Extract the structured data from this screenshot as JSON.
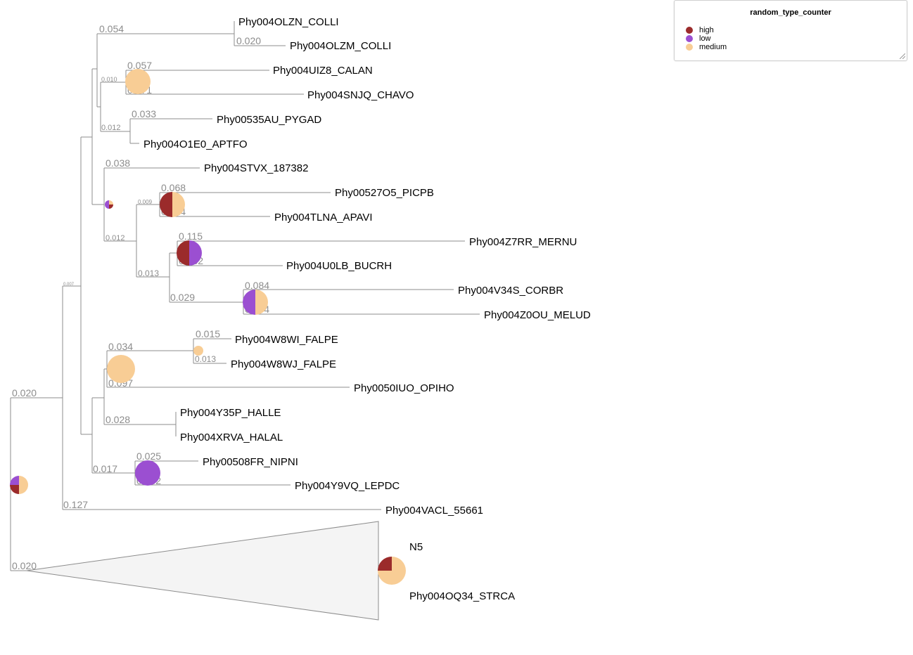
{
  "legend": {
    "title": "random_type_counter",
    "items": [
      {
        "label": "high",
        "color": "#9b2b2b"
      },
      {
        "label": "low",
        "color": "#9b4fd1"
      },
      {
        "label": "medium",
        "color": "#f8cd95"
      }
    ]
  },
  "leaves": [
    {
      "id": "l1",
      "label": "Phy004OLZN_COLLI"
    },
    {
      "id": "l2",
      "label": "Phy004OLZM_COLLI"
    },
    {
      "id": "l3",
      "label": "Phy004UIZ8_CALAN"
    },
    {
      "id": "l4",
      "label": "Phy004SNJQ_CHAVO"
    },
    {
      "id": "l5",
      "label": "Phy00535AU_PYGAD"
    },
    {
      "id": "l6",
      "label": "Phy004O1E0_APTFO"
    },
    {
      "id": "l7",
      "label": "Phy004STVX_187382"
    },
    {
      "id": "l8",
      "label": "Phy00527O5_PICPB"
    },
    {
      "id": "l9",
      "label": "Phy004TLNA_APAVI"
    },
    {
      "id": "l10",
      "label": "Phy004Z7RR_MERNU"
    },
    {
      "id": "l11",
      "label": "Phy004U0LB_BUCRH"
    },
    {
      "id": "l12",
      "label": "Phy004V34S_CORBR"
    },
    {
      "id": "l13",
      "label": "Phy004Z0OU_MELUD"
    },
    {
      "id": "l14",
      "label": "Phy004W8WI_FALPE"
    },
    {
      "id": "l15",
      "label": "Phy004W8WJ_FALPE"
    },
    {
      "id": "l16",
      "label": "Phy0050IUO_OPIHO"
    },
    {
      "id": "l17",
      "label": "Phy004Y35P_HALLE"
    },
    {
      "id": "l18",
      "label": "Phy004XRVA_HALAL"
    },
    {
      "id": "l19",
      "label": "Phy00508FR_NIPNI"
    },
    {
      "id": "l20",
      "label": "Phy004Y9VQ_LEPDC"
    },
    {
      "id": "l21",
      "label": "Phy004VACL_55661"
    }
  ],
  "collapsed_clade": {
    "name": "N5",
    "label": "Phy004OQ34_STRCA"
  },
  "branch_lengths": [
    {
      "id": "b1",
      "text": "0.054"
    },
    {
      "id": "b2",
      "text": "0.020"
    },
    {
      "id": "b3",
      "text": "0.057"
    },
    {
      "id": "b4",
      "text": "0.010"
    },
    {
      "id": "b5",
      "text": "0.071"
    },
    {
      "id": "b6",
      "text": "0.033"
    },
    {
      "id": "b7",
      "text": "0.012"
    },
    {
      "id": "b8",
      "text": "0.038"
    },
    {
      "id": "b9",
      "text": "0.068"
    },
    {
      "id": "b10",
      "text": "0.009"
    },
    {
      "id": "b11",
      "text": "0.024"
    },
    {
      "id": "b12",
      "text": "0.012"
    },
    {
      "id": "b13",
      "text": "0.115"
    },
    {
      "id": "b14",
      "text": "0.032"
    },
    {
      "id": "b15",
      "text": "0.013"
    },
    {
      "id": "b16",
      "text": "0.084"
    },
    {
      "id": "b17",
      "text": "0.029"
    },
    {
      "id": "b18",
      "text": "0.104"
    },
    {
      "id": "b19",
      "text": "0.007"
    },
    {
      "id": "b20",
      "text": "0.015"
    },
    {
      "id": "b21",
      "text": "0.034"
    },
    {
      "id": "b22",
      "text": "0.013"
    },
    {
      "id": "b23",
      "text": "0.097"
    },
    {
      "id": "b24",
      "text": "0.028"
    },
    {
      "id": "b25",
      "text": "0.025"
    },
    {
      "id": "b26",
      "text": "0.017"
    },
    {
      "id": "b27",
      "text": "0.032"
    },
    {
      "id": "b28",
      "text": "0.020"
    },
    {
      "id": "b29",
      "text": "0.127"
    },
    {
      "id": "b30",
      "text": "0.020"
    }
  ],
  "pie_nodes": [
    {
      "id": "p1",
      "composition": [
        {
          "type": "medium",
          "fraction": 1.0
        }
      ]
    },
    {
      "id": "p2",
      "composition": [
        {
          "type": "medium",
          "fraction": 0.25
        },
        {
          "type": "high",
          "fraction": 0.25
        },
        {
          "type": "low",
          "fraction": 0.5
        }
      ]
    },
    {
      "id": "p3",
      "composition": [
        {
          "type": "medium",
          "fraction": 0.5
        },
        {
          "type": "high",
          "fraction": 0.5
        }
      ]
    },
    {
      "id": "p4",
      "composition": [
        {
          "type": "low",
          "fraction": 0.5
        },
        {
          "type": "high",
          "fraction": 0.5
        }
      ]
    },
    {
      "id": "p5",
      "composition": [
        {
          "type": "medium",
          "fraction": 0.5
        },
        {
          "type": "low",
          "fraction": 0.5
        }
      ]
    },
    {
      "id": "p6",
      "composition": [
        {
          "type": "medium",
          "fraction": 1.0
        }
      ]
    },
    {
      "id": "p7",
      "composition": [
        {
          "type": "medium",
          "fraction": 1.0
        }
      ]
    },
    {
      "id": "p8",
      "composition": [
        {
          "type": "low",
          "fraction": 1.0
        }
      ]
    },
    {
      "id": "p9",
      "composition": [
        {
          "type": "medium",
          "fraction": 0.5
        },
        {
          "type": "high",
          "fraction": 0.25
        },
        {
          "type": "low",
          "fraction": 0.25
        }
      ]
    },
    {
      "id": "p10",
      "composition": [
        {
          "type": "medium",
          "fraction": 0.75
        },
        {
          "type": "high",
          "fraction": 0.25
        }
      ]
    }
  ]
}
